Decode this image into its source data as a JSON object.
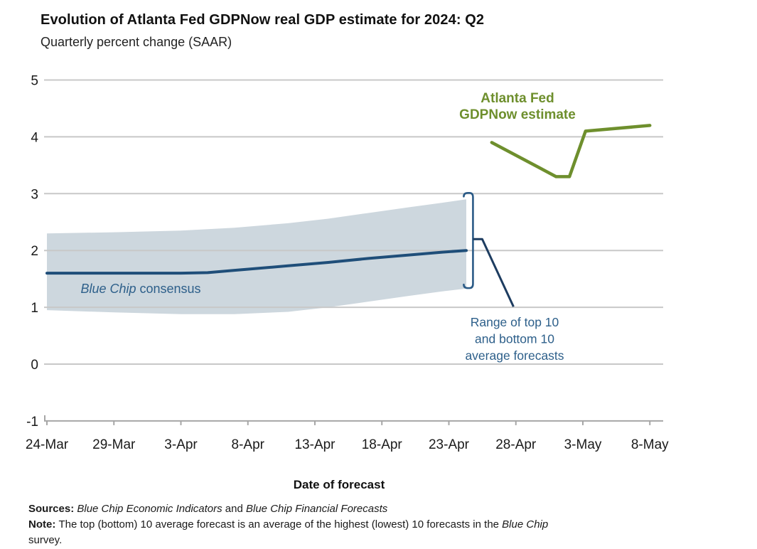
{
  "title": "Evolution of Atlanta Fed GDPNow real GDP estimate for 2024: Q2",
  "subtitle": "Quarterly percent change (SAAR)",
  "colors": {
    "gdpnow_green": "#6e8f2d",
    "consensus_navy": "#1f4e79",
    "band_fill": "#cdd7de",
    "annotation_blue": "#2d5f8a",
    "bracket_blue": "#2a5a86",
    "leader_navy": "#1d3c60",
    "gridline": "#c8c8c8",
    "axis_line": "#a6a6a6",
    "tick_text": "#1a1a1a"
  },
  "chart_data": {
    "type": "line",
    "title": "Evolution of Atlanta Fed GDPNow real GDP estimate for 2024: Q2",
    "ylabel": "Quarterly percent change (SAAR)",
    "xlabel": "Date of forecast",
    "ylim": [
      -1,
      5
    ],
    "yticks": [
      -1,
      0,
      1,
      2,
      3,
      4,
      5
    ],
    "xticklabels": [
      "24-Mar",
      "29-Mar",
      "3-Apr",
      "8-Apr",
      "13-Apr",
      "18-Apr",
      "23-Apr",
      "28-Apr",
      "3-May",
      "8-May"
    ],
    "xtick_days": [
      0,
      5,
      10,
      15,
      20,
      25,
      30,
      35,
      40,
      45
    ],
    "x_unit": "days since 24-Mar-2024",
    "grid": "horizontal only",
    "legend": "inline annotations",
    "series": [
      {
        "name": "Blue Chip consensus",
        "color_key": "consensus_navy",
        "x": [
          0,
          5,
          10,
          12,
          14,
          18,
          21,
          24,
          27,
          29.5,
          31.3
        ],
        "values": [
          1.6,
          1.6,
          1.6,
          1.61,
          1.65,
          1.73,
          1.79,
          1.86,
          1.92,
          1.97,
          2.0
        ]
      },
      {
        "name": "Atlanta Fed GDPNow estimate",
        "color_key": "gdpnow_green",
        "x": [
          33.2,
          38,
          39,
          40.2,
          45
        ],
        "values": [
          3.9,
          3.3,
          3.3,
          4.1,
          4.2
        ]
      }
    ],
    "band": {
      "name": "Range of top 10 and bottom 10 average forecasts",
      "color_key": "band_fill",
      "x": [
        0,
        5,
        10,
        14,
        18,
        21,
        24,
        27,
        29.5,
        31.3
      ],
      "top": [
        2.3,
        2.32,
        2.35,
        2.4,
        2.48,
        2.56,
        2.66,
        2.76,
        2.84,
        2.9
      ],
      "bottom": [
        0.95,
        0.91,
        0.88,
        0.88,
        0.92,
        1.0,
        1.1,
        1.2,
        1.28,
        1.33
      ]
    },
    "range_bracket": {
      "at_day": 31.8,
      "spans_values": [
        1.35,
        3.0
      ],
      "mid_value": 2.2
    },
    "annotations": {
      "gdpnow_label": {
        "lines": [
          "Atlanta Fed",
          "GDPNow estimate"
        ]
      },
      "consensus_label": {
        "italic_part": "Blue Chip",
        "regular_part": " consensus"
      },
      "range_label": {
        "lines": [
          "Range of top 10",
          "and bottom 10",
          "average forecasts"
        ]
      }
    }
  },
  "footer": {
    "sources_label": "Sources: ",
    "sources_italic1": "Blue Chip Economic Indicators",
    "sources_and": " and ",
    "sources_italic2": "Blue Chip Financial Forecasts",
    "note_label": "Note: ",
    "note_body": "The top (bottom) 10 average forecast is an average of the highest (lowest) 10 forecasts in the ",
    "note_italic": "Blue Chip",
    "note_tail": "survey."
  }
}
